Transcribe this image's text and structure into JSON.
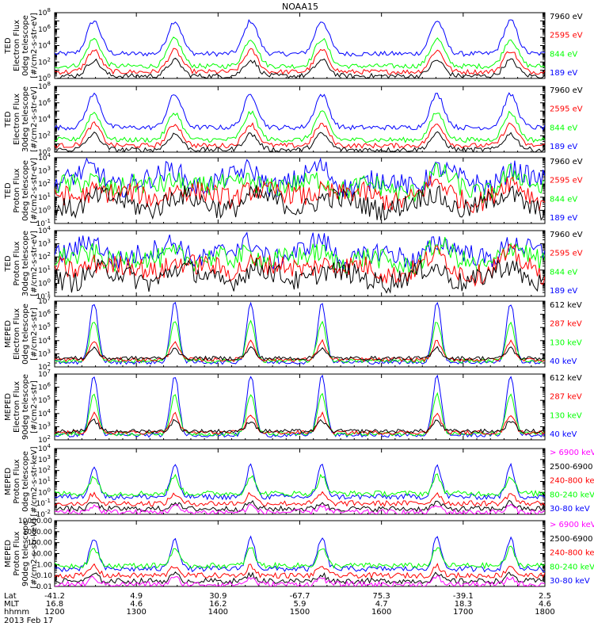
{
  "chart_data": {
    "title": "NOAA15",
    "type": "line",
    "colors": {
      "black": "#000000",
      "red": "#ff0000",
      "green": "#00ff00",
      "blue": "#0000ff",
      "magenta": "#ff00ff"
    },
    "x_range": [
      "1200",
      "1800"
    ],
    "panels": [
      {
        "ylabel": [
          "TED",
          "Electron Flux",
          "0deg telescope",
          "[#/cm2-s-str-eV]"
        ],
        "scale": "log",
        "ylim_exp": [
          0,
          8
        ],
        "ytick_exps": [
          0,
          2,
          4,
          6,
          8
        ],
        "legend": [
          {
            "label": "7960 eV",
            "color": "#000000"
          },
          {
            "label": "2595 eV",
            "color": "#ff0000"
          },
          {
            "label": "844 eV",
            "color": "#00ff00"
          },
          {
            "label": "189 eV",
            "color": "#0000ff"
          }
        ]
      },
      {
        "ylabel": [
          "TED",
          "Electron Flux",
          "30deg telescope",
          "[#/cm2-s-str-eV]"
        ],
        "scale": "log",
        "ylim_exp": [
          0,
          8
        ],
        "ytick_exps": [
          0,
          2,
          4,
          6,
          8
        ],
        "legend": [
          {
            "label": "7960 eV",
            "color": "#000000"
          },
          {
            "label": "2595 eV",
            "color": "#ff0000"
          },
          {
            "label": "844 eV",
            "color": "#00ff00"
          },
          {
            "label": "189 eV",
            "color": "#0000ff"
          }
        ]
      },
      {
        "ylabel": [
          "TED",
          "Proton Flux",
          "0deg telescope",
          "[#/cm2-s-str-eV]"
        ],
        "scale": "log",
        "ylim_exp": [
          -1,
          4
        ],
        "ytick_exps": [
          -1,
          0,
          1,
          2,
          3,
          4
        ],
        "legend": [
          {
            "label": "7960 eV",
            "color": "#000000"
          },
          {
            "label": "2595 eV",
            "color": "#ff0000"
          },
          {
            "label": "844 eV",
            "color": "#00ff00"
          },
          {
            "label": "189 eV",
            "color": "#0000ff"
          }
        ]
      },
      {
        "ylabel": [
          "TED",
          "Proton Flux",
          "30deg telescope",
          "[#/cm2-s-str-eV]"
        ],
        "scale": "log",
        "ylim_exp": [
          -1,
          4
        ],
        "ytick_exps": [
          -1,
          0,
          1,
          2,
          3,
          4
        ],
        "legend": [
          {
            "label": "7960 eV",
            "color": "#000000"
          },
          {
            "label": "2595 eV",
            "color": "#ff0000"
          },
          {
            "label": "844 eV",
            "color": "#00ff00"
          },
          {
            "label": "189 eV",
            "color": "#0000ff"
          }
        ]
      },
      {
        "ylabel": [
          "MEPED",
          "Electron Flux",
          "0deg telescope",
          "[#/cm2-s-str]"
        ],
        "scale": "log",
        "ylim_exp": [
          2,
          7
        ],
        "ytick_exps": [
          2,
          3,
          4,
          5,
          6,
          7
        ],
        "legend": [
          {
            "label": "612 keV",
            "color": "#000000"
          },
          {
            "label": "287 keV",
            "color": "#ff0000"
          },
          {
            "label": "130 keV",
            "color": "#00ff00"
          },
          {
            "label": "40 keV",
            "color": "#0000ff"
          }
        ]
      },
      {
        "ylabel": [
          "MEPED",
          "Electron Flux",
          "90deg telescope",
          "[#/cm2-s-str]"
        ],
        "scale": "log",
        "ylim_exp": [
          2,
          7
        ],
        "ytick_exps": [
          2,
          3,
          4,
          5,
          6,
          7
        ],
        "legend": [
          {
            "label": "612 keV",
            "color": "#000000"
          },
          {
            "label": "287 keV",
            "color": "#ff0000"
          },
          {
            "label": "130 keV",
            "color": "#00ff00"
          },
          {
            "label": "40 keV",
            "color": "#0000ff"
          }
        ]
      },
      {
        "ylabel": [
          "MEPED",
          "Proton Flux",
          "0deg telescope",
          "[#/cm2-s-str-keV]"
        ],
        "scale": "log",
        "ylim_exp": [
          -2,
          4
        ],
        "ytick_exps": [
          -2,
          -1,
          0,
          1,
          2,
          3,
          4
        ],
        "legend": [
          {
            "label": "> 6900 keV",
            "color": "#ff00ff"
          },
          {
            "label": "2500-6900",
            "color": "#000000"
          },
          {
            "label": "240-800 keV",
            "color": "#ff0000"
          },
          {
            "label": "80-240 keV",
            "color": "#00ff00"
          },
          {
            "label": "30-80 keV",
            "color": "#0000ff"
          }
        ]
      },
      {
        "ylabel": [
          "MEPED",
          "Proton Flux",
          "90deg telescope",
          "[#/cm2-s-str-keV]"
        ],
        "scale": "log",
        "ylim_exp": [
          -2,
          4
        ],
        "ytick_labels": [
          "0.01",
          "0.10",
          "1.00",
          "10.00",
          "100.00",
          "1000.00",
          "10000.00"
        ],
        "legend": [
          {
            "label": "> 6900 keV",
            "color": "#ff00ff"
          },
          {
            "label": "2500-6900",
            "color": "#000000"
          },
          {
            "label": "240-800 keV",
            "color": "#ff0000"
          },
          {
            "label": "80-240 keV",
            "color": "#00ff00"
          },
          {
            "label": "30-80 keV",
            "color": "#0000ff"
          }
        ]
      }
    ],
    "xaxis": {
      "row_labels": [
        "Lat",
        "MLT",
        "hhmm"
      ],
      "date": "2013 Feb 17",
      "ticks": [
        {
          "lat": "-41.2",
          "mlt": "16.8",
          "hhmm": "1200"
        },
        {
          "lat": "4.9",
          "mlt": "4.6",
          "hhmm": "1300"
        },
        {
          "lat": "30.9",
          "mlt": "16.2",
          "hhmm": "1400"
        },
        {
          "lat": "-67.7",
          "mlt": "5.9",
          "hhmm": "1500"
        },
        {
          "lat": "75.3",
          "mlt": "4.7",
          "hhmm": "1600"
        },
        {
          "lat": "-39.1",
          "mlt": "18.3",
          "hhmm": "1700"
        },
        {
          "lat": "2.5",
          "mlt": "4.6",
          "hhmm": "1800"
        }
      ]
    }
  }
}
